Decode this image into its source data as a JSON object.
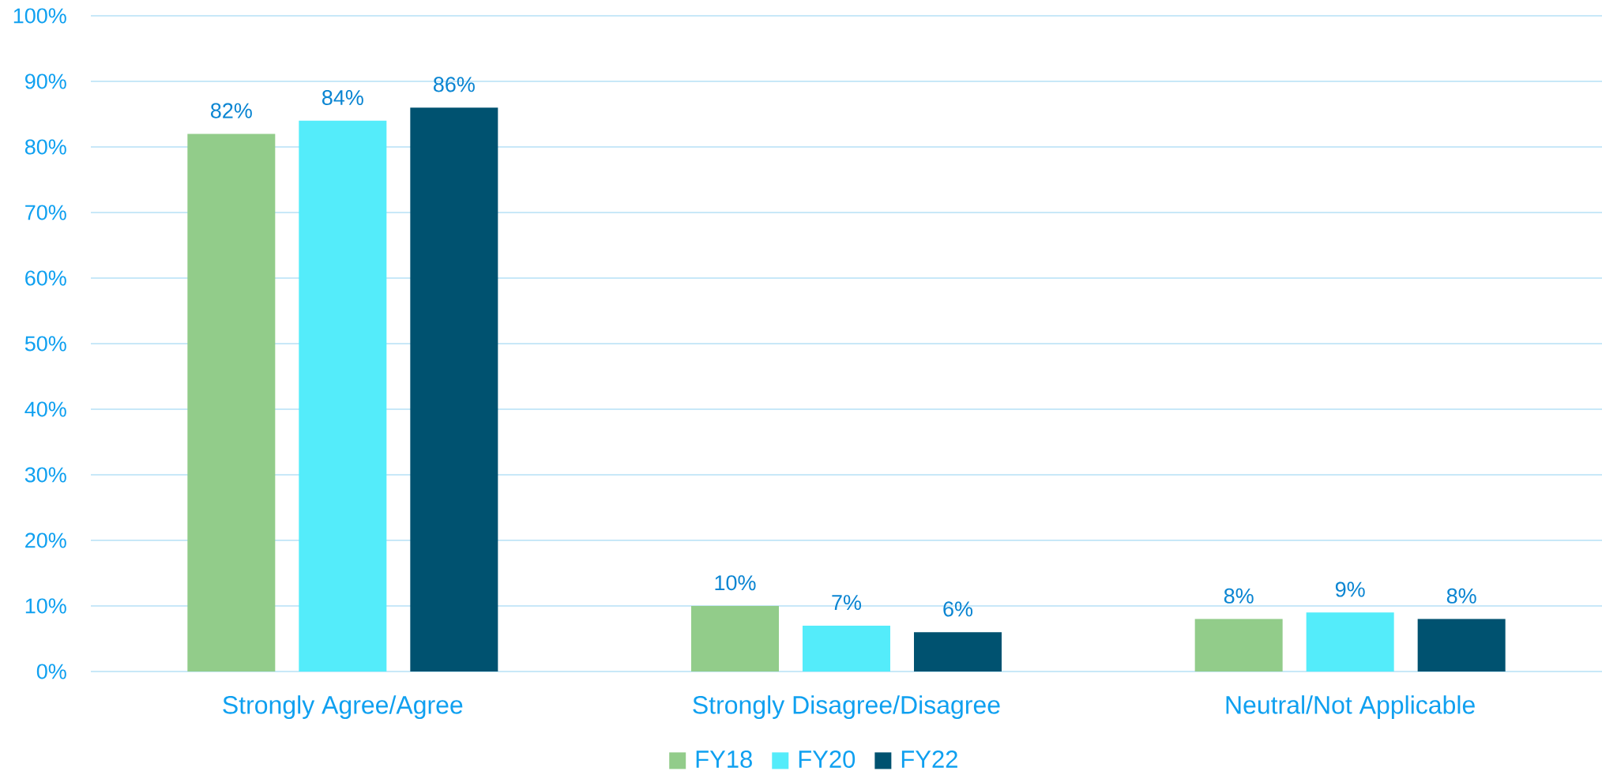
{
  "chart_data": {
    "type": "bar",
    "categories": [
      "Strongly Agree/Agree",
      "Strongly Disagree/Disagree",
      "Neutral/Not Applicable"
    ],
    "series": [
      {
        "name": "FY18",
        "color": "#92cc8a",
        "values": [
          82,
          10,
          8
        ],
        "value_labels": [
          "82%",
          "10%",
          "8%"
        ]
      },
      {
        "name": "FY20",
        "color": "#54ecfa",
        "values": [
          84,
          7,
          9
        ],
        "value_labels": [
          "84%",
          "7%",
          "9%"
        ]
      },
      {
        "name": "FY22",
        "color": "#005270",
        "values": [
          86,
          6,
          8
        ],
        "value_labels": [
          "86%",
          "6%",
          "8%"
        ]
      }
    ],
    "ylim": [
      0,
      100
    ],
    "yticks": [
      {
        "value": 0,
        "label": "0%"
      },
      {
        "value": 10,
        "label": "10%"
      },
      {
        "value": 20,
        "label": "20%"
      },
      {
        "value": 30,
        "label": "30%"
      },
      {
        "value": 40,
        "label": "40%"
      },
      {
        "value": 50,
        "label": "50%"
      },
      {
        "value": 60,
        "label": "60%"
      },
      {
        "value": 70,
        "label": "70%"
      },
      {
        "value": 80,
        "label": "80%"
      },
      {
        "value": 90,
        "label": "90%"
      },
      {
        "value": 100,
        "label": "100%"
      }
    ],
    "grid": "y",
    "legend": "bottom"
  }
}
